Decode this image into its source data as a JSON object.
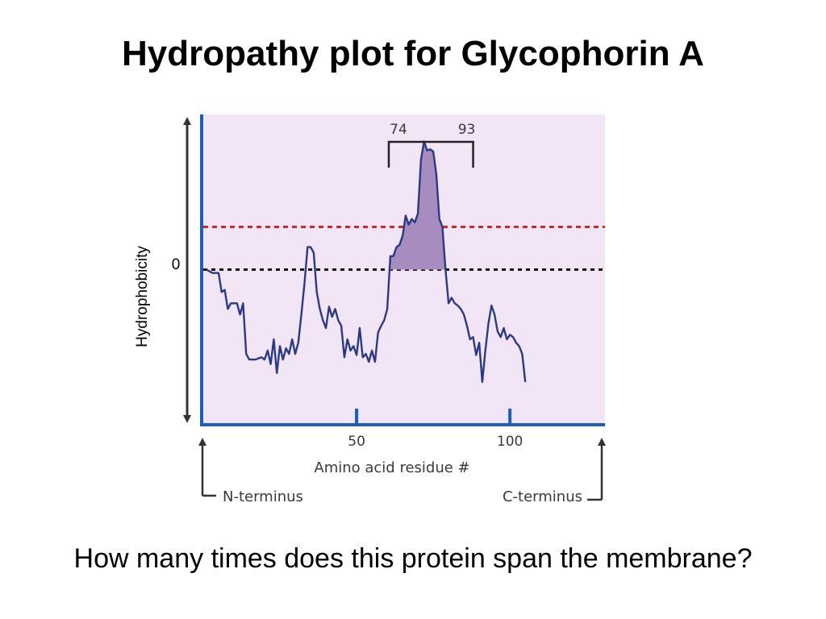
{
  "slide": {
    "title": "Hydropathy plot for Glycophorin A",
    "question": "How many times does this protein span the membrane?"
  },
  "chart_data": {
    "type": "line",
    "xlabel": "Amino acid residue #",
    "ylabel": "Hydrophobicity",
    "xlim": [
      0,
      131
    ],
    "ylim": [
      -1.38,
      1.38
    ],
    "x_ticks": [
      50,
      100
    ],
    "y_zero_label": "0",
    "threshold": 0.38,
    "zero_line": 0,
    "n_terminus_label": "N-terminus",
    "c_terminus_label": "C-terminus",
    "bracket": {
      "start": 74,
      "end": 93,
      "start_label": "74",
      "end_label": "93"
    },
    "shaded_region": {
      "from": 61,
      "to": 79
    },
    "colors": {
      "plot_background": "#f2e6f6",
      "line": "#2a3a85",
      "axis": "#1a5fb8",
      "threshold_line": "#d02828",
      "zero_line": "#111111",
      "fill": "#a68cbf"
    },
    "series": [
      {
        "values": [
          [
            1,
            0.0
          ],
          [
            3,
            -0.03
          ],
          [
            5,
            -0.03
          ],
          [
            6,
            -0.2
          ],
          [
            7,
            -0.18
          ],
          [
            8,
            -0.35
          ],
          [
            9,
            -0.3
          ],
          [
            10,
            -0.3
          ],
          [
            11,
            -0.3
          ],
          [
            12,
            -0.4
          ],
          [
            13,
            -0.3
          ],
          [
            14,
            -0.75
          ],
          [
            15,
            -0.8
          ],
          [
            17,
            -0.8
          ],
          [
            19,
            -0.78
          ],
          [
            20,
            -0.8
          ],
          [
            21,
            -0.72
          ],
          [
            22,
            -0.84
          ],
          [
            23,
            -0.62
          ],
          [
            24,
            -0.92
          ],
          [
            25,
            -0.68
          ],
          [
            26,
            -0.8
          ],
          [
            27,
            -0.7
          ],
          [
            28,
            -0.75
          ],
          [
            29,
            -0.62
          ],
          [
            30,
            -0.75
          ],
          [
            31,
            -0.65
          ],
          [
            32,
            -0.4
          ],
          [
            33,
            -0.12
          ],
          [
            34,
            0.2
          ],
          [
            35,
            0.2
          ],
          [
            36,
            0.15
          ],
          [
            37,
            -0.2
          ],
          [
            38,
            -0.35
          ],
          [
            39,
            -0.45
          ],
          [
            40,
            -0.52
          ],
          [
            41,
            -0.33
          ],
          [
            42,
            -0.42
          ],
          [
            43,
            -0.35
          ],
          [
            44,
            -0.45
          ],
          [
            45,
            -0.5
          ],
          [
            46,
            -0.78
          ],
          [
            47,
            -0.62
          ],
          [
            48,
            -0.72
          ],
          [
            49,
            -0.68
          ],
          [
            50,
            -0.76
          ],
          [
            51,
            -0.52
          ],
          [
            52,
            -0.78
          ],
          [
            53,
            -0.75
          ],
          [
            54,
            -0.82
          ],
          [
            55,
            -0.72
          ],
          [
            56,
            -0.82
          ],
          [
            57,
            -0.56
          ],
          [
            58,
            -0.5
          ],
          [
            59,
            -0.45
          ],
          [
            60,
            -0.35
          ],
          [
            61,
            0.12
          ],
          [
            62,
            0.12
          ],
          [
            63,
            0.2
          ],
          [
            64,
            0.22
          ],
          [
            65,
            0.3
          ],
          [
            66,
            0.48
          ],
          [
            67,
            0.4
          ],
          [
            68,
            0.45
          ],
          [
            69,
            0.42
          ],
          [
            70,
            0.5
          ],
          [
            71,
            0.98
          ],
          [
            72,
            1.14
          ],
          [
            73,
            1.06
          ],
          [
            74,
            1.07
          ],
          [
            75,
            1.05
          ],
          [
            76,
            0.85
          ],
          [
            77,
            0.45
          ],
          [
            78,
            0.38
          ],
          [
            79,
            0.0
          ],
          [
            80,
            -0.3
          ],
          [
            81,
            -0.25
          ],
          [
            82,
            -0.3
          ],
          [
            83,
            -0.32
          ],
          [
            84,
            -0.35
          ],
          [
            85,
            -0.4
          ],
          [
            86,
            -0.5
          ],
          [
            87,
            -0.62
          ],
          [
            88,
            -0.6
          ],
          [
            89,
            -0.76
          ],
          [
            90,
            -0.65
          ],
          [
            91,
            -1.0
          ],
          [
            92,
            -0.72
          ],
          [
            93,
            -0.48
          ],
          [
            94,
            -0.32
          ],
          [
            95,
            -0.4
          ],
          [
            96,
            -0.55
          ],
          [
            97,
            -0.6
          ],
          [
            98,
            -0.52
          ],
          [
            99,
            -0.62
          ],
          [
            100,
            -0.58
          ],
          [
            101,
            -0.6
          ],
          [
            102,
            -0.65
          ],
          [
            103,
            -0.68
          ],
          [
            104,
            -0.75
          ],
          [
            105,
            -1.0
          ]
        ]
      }
    ]
  }
}
